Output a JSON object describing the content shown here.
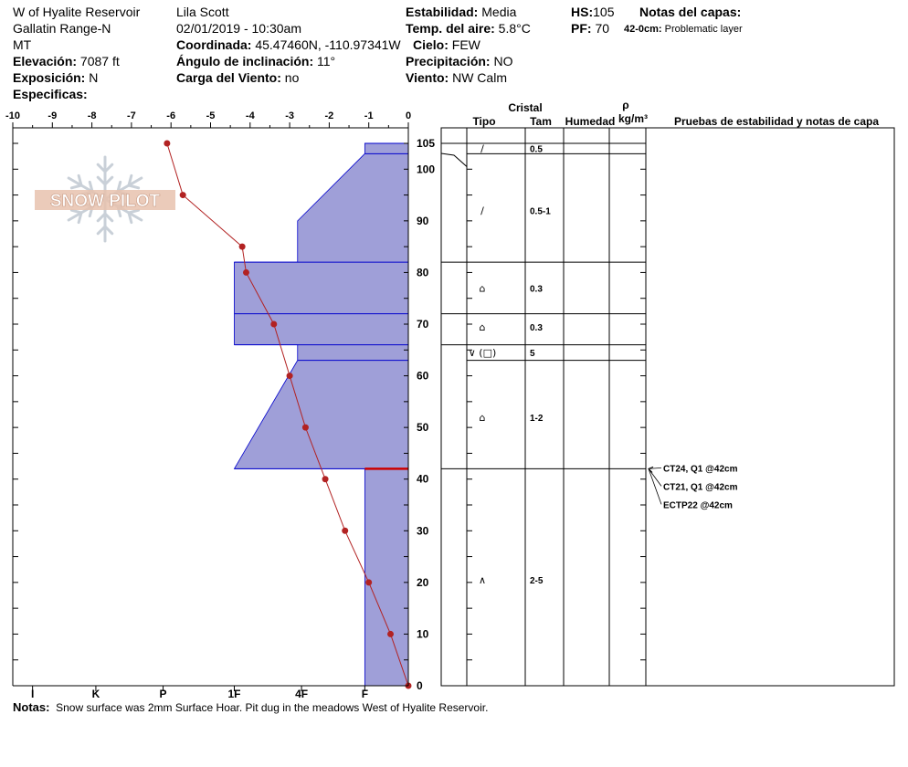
{
  "header": {
    "location": "W of Hyalite Reservoir",
    "range": "Gallatin Range-N",
    "state": "MT",
    "elevation_label": "Elevación:",
    "elevation_value": "7087 ft",
    "aspect_label": "Exposición:",
    "aspect_value": "N",
    "specifics_label": "Especificas:",
    "observer": "Lila Scott",
    "datetime": "02/01/2019 - 10:30am",
    "coord_label": "Coordinada:",
    "coord_value": "45.47460N, -110.97341W",
    "slope_label": "Ángulo de inclinación:",
    "slope_value": "11°",
    "wind_load_label": "Carga del Viento:",
    "wind_load_value": "no",
    "stability_label": "Estabilidad:",
    "stability_value": "Media",
    "air_temp_label": "Temp. del aire:",
    "air_temp_value": "5.8°C",
    "sky_label": "Cielo:",
    "sky_value": "FEW",
    "precip_label": "Precipitación:",
    "precip_value": "NO",
    "wind_label": "Viento:",
    "wind_value": "NW Calm",
    "hs_label": "HS:",
    "hs_value": "105",
    "pf_label": "PF:",
    "pf_value": "70",
    "layer_notes_label": "Notas del capas:",
    "layer_note_depth": "42-0cm:",
    "layer_note_text": "Problematic layer"
  },
  "logo": {
    "text": "SNOW PILOT"
  },
  "notes": {
    "label": "Notas:",
    "text": "Snow surface was 2mm Surface Hoar. Pit dug in the meadows West of Hyalite Reservoir."
  },
  "table_headers": {
    "crystal": "Cristal",
    "type": "Tipo",
    "size": "Tam",
    "moisture": "Humedad",
    "rho": "ρ",
    "density_unit": "kg/m³",
    "tests": "Pruebas de estabilidad y notas de capa"
  },
  "colors": {
    "hardness_fill": "#9f9fd8",
    "layer_line": "#0000cc",
    "temp_line": "#b22222",
    "weak_layer": "#cc0000"
  },
  "chart_data": {
    "type": "line",
    "temp_axis": {
      "range": [
        -10,
        0
      ],
      "ticks": [
        "-10",
        "-9",
        "-8",
        "-7",
        "-6",
        "-5",
        "-4",
        "-3",
        "-2",
        "-1",
        "0"
      ]
    },
    "height_axis": {
      "range": [
        0,
        105
      ],
      "ticks": [
        "105",
        "100",
        "90",
        "80",
        "70",
        "60",
        "50",
        "40",
        "30",
        "20",
        "10",
        "0"
      ]
    },
    "hardness_axis": {
      "ticks": [
        "I",
        "K",
        "P",
        "1F",
        "4F",
        "F"
      ]
    },
    "temperature_profile": [
      {
        "h": 105,
        "t": -6.1
      },
      {
        "h": 95,
        "t": -5.7
      },
      {
        "h": 85,
        "t": -4.2
      },
      {
        "h": 80,
        "t": -4.1
      },
      {
        "h": 70,
        "t": -3.4
      },
      {
        "h": 60,
        "t": -3.0
      },
      {
        "h": 50,
        "t": -2.6
      },
      {
        "h": 40,
        "t": -2.1
      },
      {
        "h": 30,
        "t": -1.6
      },
      {
        "h": 20,
        "t": -1.0
      },
      {
        "h": 10,
        "t": -0.45
      },
      {
        "h": 0,
        "t": 0
      }
    ],
    "hardness_profile": [
      {
        "h": 105,
        "t": -1.1
      },
      {
        "h": 103,
        "t": -1.1
      },
      {
        "h": 103,
        "t": -1.1
      },
      {
        "h": 90,
        "t": -2.8
      },
      {
        "h": 82,
        "t": -2.8
      },
      {
        "h": 82,
        "t": -4.4
      },
      {
        "h": 72,
        "t": -4.4
      },
      {
        "h": 66,
        "t": -4.4
      },
      {
        "h": 66,
        "t": -2.8
      },
      {
        "h": 63,
        "t": -2.8
      },
      {
        "h": 42,
        "t": -4.4
      },
      {
        "h": 42,
        "t": -1.1
      },
      {
        "h": 0,
        "t": -1.1
      }
    ],
    "layer_boundaries": [
      105,
      103,
      82,
      72,
      66,
      63,
      42
    ],
    "weak_layer_height": 42,
    "layers": [
      {
        "top": 105,
        "bottom": 103,
        "mid": 104,
        "type": "/",
        "size": "0.5"
      },
      {
        "top": 103,
        "bottom": 82,
        "mid": 92,
        "type": "/",
        "size": "0.5-1"
      },
      {
        "top": 82,
        "bottom": 72,
        "mid": 77,
        "type": "⌂",
        "size": "0.3"
      },
      {
        "top": 72,
        "bottom": 66,
        "mid": 69.5,
        "type": "⌂",
        "size": "0.3"
      },
      {
        "top": 66,
        "bottom": 63,
        "mid": 64.5,
        "type": "∨ (□)",
        "size": "5"
      },
      {
        "top": 63,
        "bottom": 42,
        "mid": 52,
        "type": "⌂",
        "size": "1-2"
      },
      {
        "top": 42,
        "bottom": 0,
        "mid": 20.5,
        "type": "∧",
        "size": "2-5"
      }
    ],
    "stability_tests": [
      "CT24, Q1 @42cm",
      "CT21, Q1 @42cm",
      "ECTP22 @42cm"
    ]
  }
}
